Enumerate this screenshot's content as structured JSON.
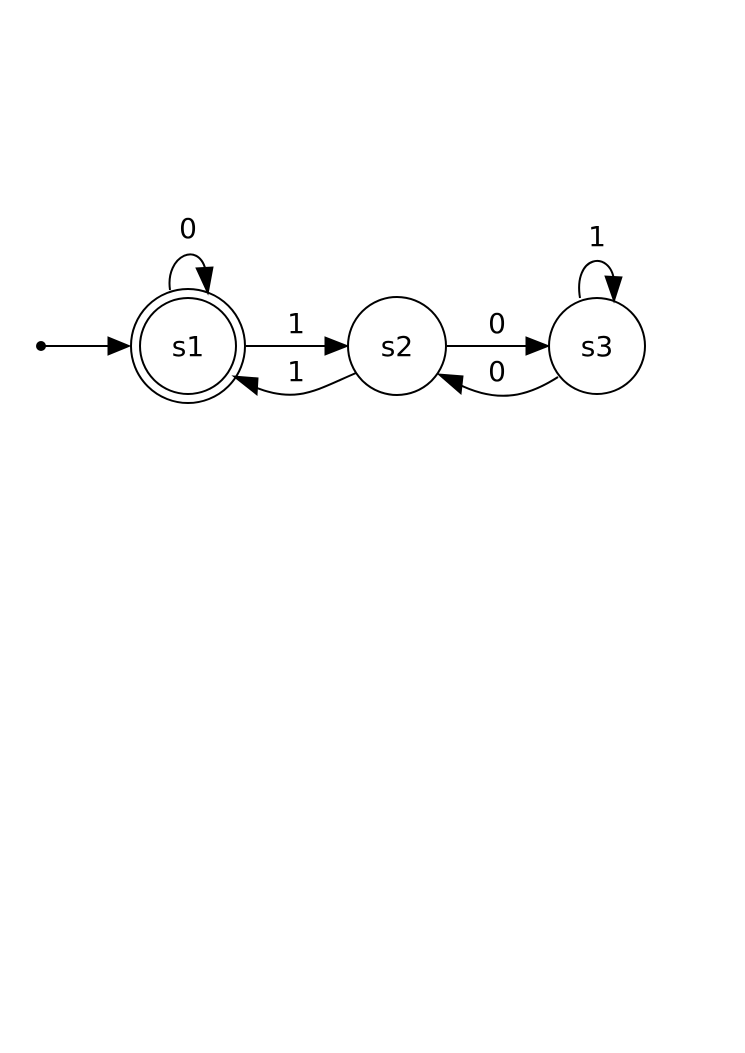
{
  "diagram": {
    "type": "finite-state-machine",
    "states": [
      {
        "id": "s1",
        "label": "s1",
        "accepting": true,
        "initial": true
      },
      {
        "id": "s2",
        "label": "s2",
        "accepting": false,
        "initial": false
      },
      {
        "id": "s3",
        "label": "s3",
        "accepting": false,
        "initial": false
      }
    ],
    "transitions": [
      {
        "from": "s1",
        "to": "s1",
        "label": "0"
      },
      {
        "from": "s1",
        "to": "s2",
        "label": "1"
      },
      {
        "from": "s2",
        "to": "s1",
        "label": "1"
      },
      {
        "from": "s2",
        "to": "s3",
        "label": "0"
      },
      {
        "from": "s3",
        "to": "s2",
        "label": "0"
      },
      {
        "from": "s3",
        "to": "s3",
        "label": "1"
      }
    ],
    "colors": {
      "stroke": "#000000",
      "background": "#ffffff"
    }
  }
}
